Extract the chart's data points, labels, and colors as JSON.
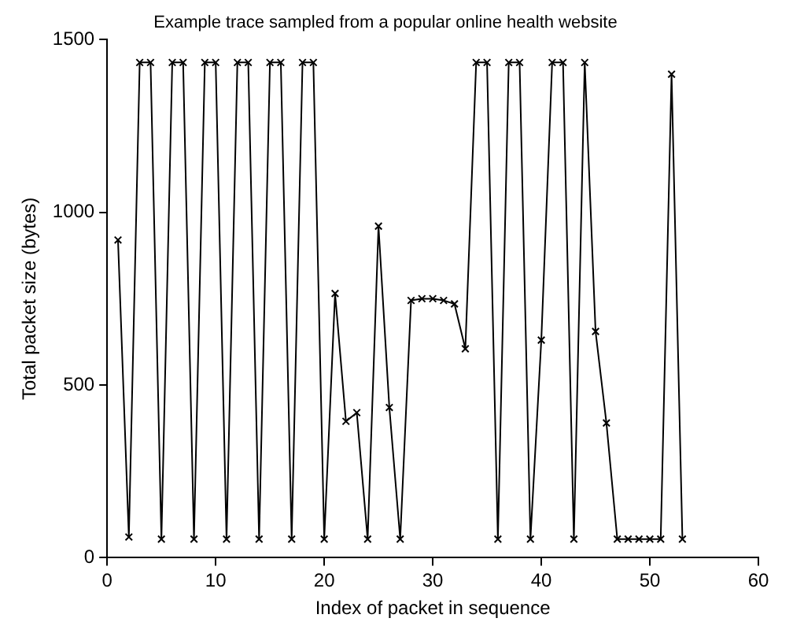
{
  "chart_data": {
    "type": "line",
    "title": "Example trace sampled from a popular online health website",
    "xlabel": "Index of packet in sequence",
    "ylabel": "Total packet size (bytes)",
    "x": [
      1,
      2,
      3,
      4,
      5,
      6,
      7,
      8,
      9,
      10,
      11,
      12,
      13,
      14,
      15,
      16,
      17,
      18,
      19,
      20,
      21,
      22,
      23,
      24,
      25,
      26,
      27,
      28,
      29,
      30,
      31,
      32,
      33,
      34,
      35,
      36,
      37,
      38,
      39,
      40,
      41,
      42,
      43,
      44,
      45,
      46,
      47,
      48,
      49,
      50,
      51,
      52,
      53
    ],
    "series": [
      {
        "color": "#000000",
        "values": [
          920,
          60,
          1434,
          1434,
          54,
          1434,
          1434,
          54,
          1434,
          1434,
          54,
          1434,
          1434,
          54,
          1434,
          1434,
          54,
          1434,
          1434,
          54,
          765,
          395,
          420,
          54,
          960,
          435,
          54,
          745,
          750,
          750,
          745,
          735,
          605,
          1434,
          1434,
          54,
          1434,
          1434,
          54,
          630,
          1434,
          1434,
          54,
          1434,
          655,
          390,
          54,
          54,
          54,
          54,
          54,
          1400,
          54
        ]
      }
    ],
    "xlim": [
      0,
      60
    ],
    "xticks": [
      0,
      10,
      20,
      30,
      40,
      50,
      60
    ],
    "ylim": [
      0,
      1500
    ],
    "yticks": [
      0,
      500,
      1000,
      1500
    ],
    "grid": false,
    "legend": false,
    "marker": "cross",
    "line_style": "solid"
  }
}
